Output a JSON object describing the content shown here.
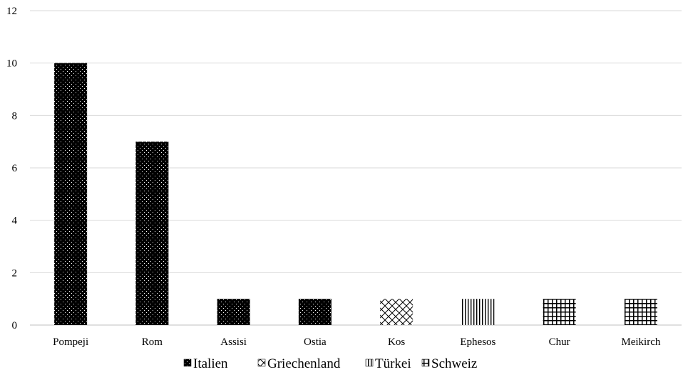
{
  "chart_data": {
    "type": "bar",
    "categories": [
      "Pompeji",
      "Rom",
      "Assisi",
      "Ostia",
      "Kos",
      "Ephesos",
      "Chur",
      "Meikirch"
    ],
    "series": [
      {
        "name": "Italien",
        "pattern": "dots",
        "values": [
          10,
          7,
          1,
          1,
          0,
          0,
          0,
          0
        ]
      },
      {
        "name": "Griechenland",
        "pattern": "crosshatch",
        "values": [
          0,
          0,
          0,
          0,
          1,
          0,
          0,
          0
        ]
      },
      {
        "name": "Türkei",
        "pattern": "vertical-lines",
        "values": [
          0,
          0,
          0,
          0,
          0,
          1,
          0,
          0
        ]
      },
      {
        "name": "Schweiz",
        "pattern": "grid",
        "values": [
          0,
          0,
          0,
          0,
          0,
          0,
          1,
          1
        ]
      }
    ],
    "ylim": [
      0,
      12
    ],
    "yticks": [
      0,
      2,
      4,
      6,
      8,
      10,
      12
    ],
    "grid": true,
    "legend": "bottom",
    "title": "",
    "xlabel": "",
    "ylabel": "",
    "colors": {
      "bar": "#000000",
      "grid": "#d9d9d9",
      "axis": "#bfbfbf"
    }
  }
}
